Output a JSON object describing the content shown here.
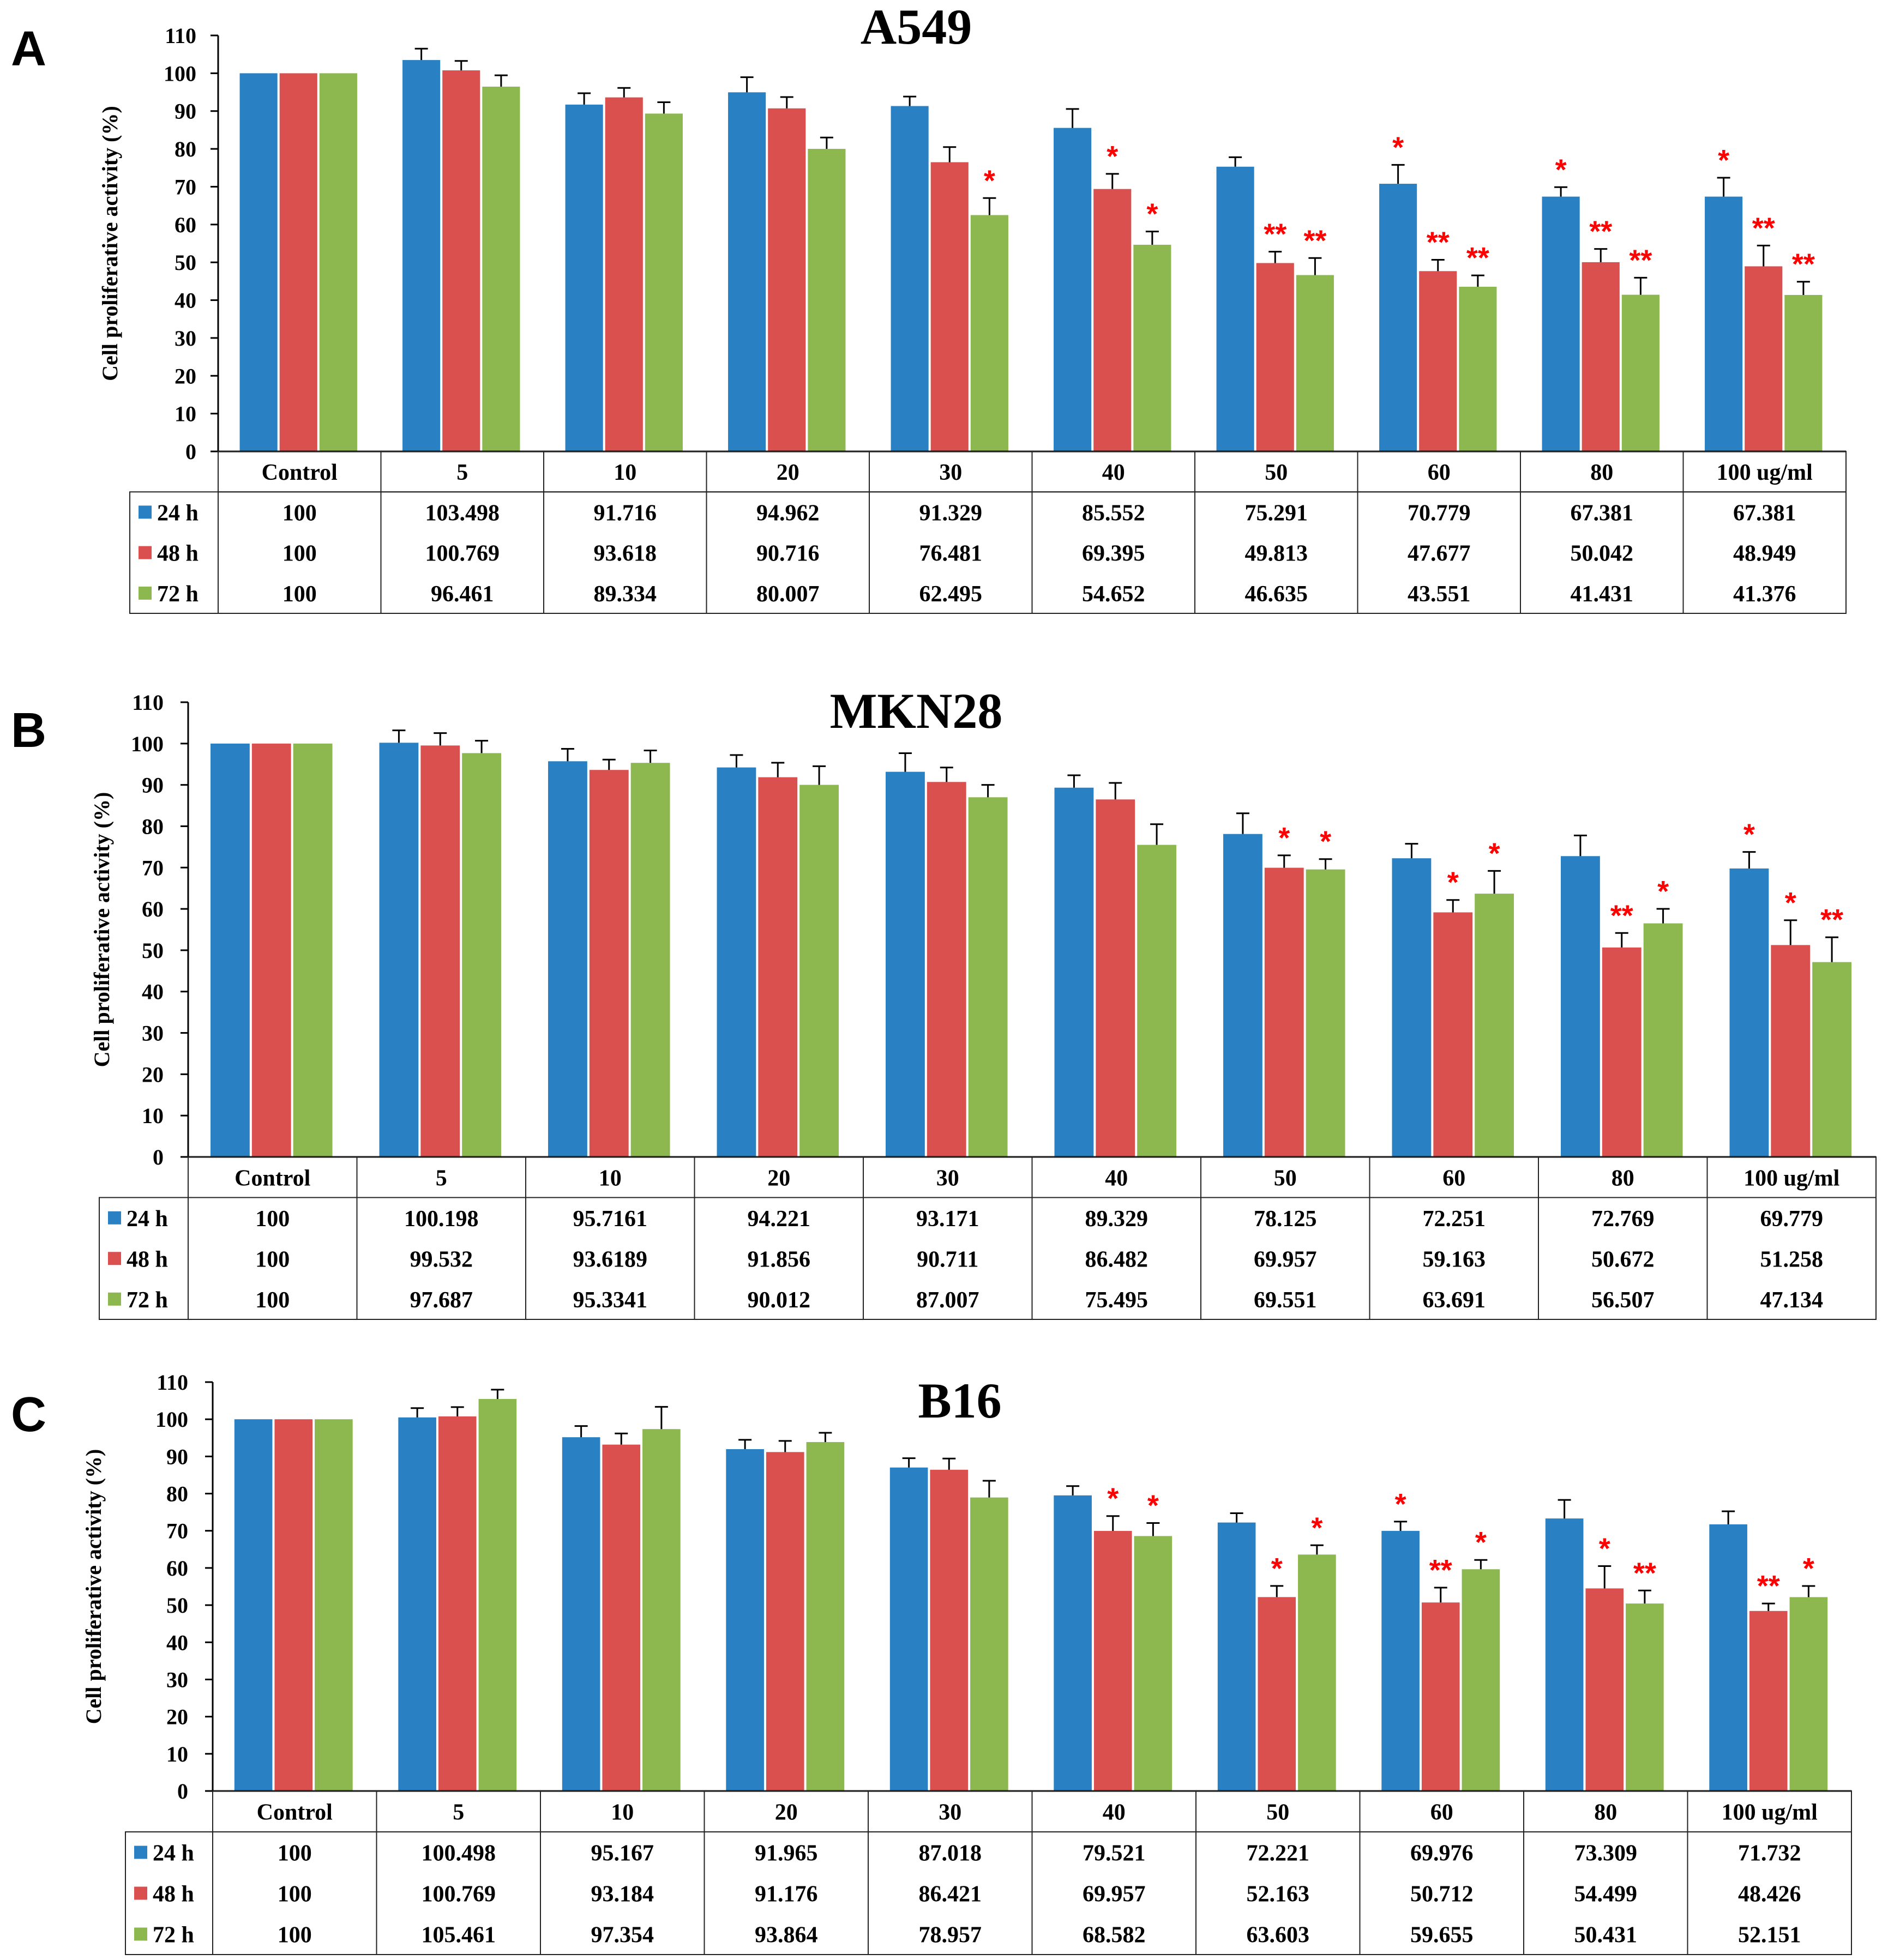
{
  "chart_data": [
    {
      "type": "bar",
      "panel": "A",
      "title": "A549",
      "ylabel": "Cell proliferative  activity (%)",
      "ylim": [
        0,
        110
      ],
      "yticks": [
        0,
        10,
        20,
        30,
        40,
        50,
        60,
        70,
        80,
        90,
        100,
        110
      ],
      "categories": [
        "Control",
        "5",
        "10",
        "20",
        "30",
        "40",
        "50",
        "60",
        "80",
        "100 ug/ml"
      ],
      "series": [
        {
          "name": "24 h",
          "color": "#2981C3",
          "values": [
            100,
            103.498,
            91.716,
            94.962,
            91.329,
            85.552,
            75.291,
            70.779,
            67.381,
            67.381
          ],
          "errors": [
            0,
            3,
            3,
            4,
            2.5,
            5,
            2.5,
            5,
            2.5,
            5
          ],
          "labels": [
            "100",
            "103.498",
            "91.716",
            "94.962",
            "91.329",
            "85.552",
            "75.291",
            "70.779",
            "67.381",
            "67.381"
          ],
          "sig": [
            "",
            "",
            "",
            "",
            "",
            "",
            "",
            "*",
            "*",
            "*"
          ]
        },
        {
          "name": "48 h",
          "color": "#D9504E",
          "values": [
            100,
            100.769,
            93.618,
            90.716,
            76.481,
            69.395,
            49.813,
            47.677,
            50.042,
            48.949
          ],
          "errors": [
            0,
            2.5,
            2.5,
            3,
            4,
            4,
            3,
            3,
            3.5,
            5.5
          ],
          "labels": [
            "100",
            "100.769",
            "93.618",
            "90.716",
            "76.481",
            "69.395",
            "49.813",
            "47.677",
            "50.042",
            "48.949"
          ],
          "sig": [
            "",
            "",
            "",
            "",
            "",
            "*",
            "**",
            "**",
            "**",
            "**"
          ]
        },
        {
          "name": "72 h",
          "color": "#8DB84F",
          "values": [
            100,
            96.461,
            89.334,
            80.007,
            62.495,
            54.652,
            46.635,
            43.551,
            41.431,
            41.376
          ],
          "errors": [
            0,
            3,
            3,
            3,
            4.5,
            3.5,
            4.5,
            3,
            4.5,
            3.5
          ],
          "labels": [
            "100",
            "96.461",
            "89.334",
            "80.007",
            "62.495",
            "54.652",
            "46.635",
            "43.551",
            "41.431",
            "41.376"
          ],
          "sig": [
            "",
            "",
            "",
            "",
            "*",
            "*",
            "**",
            "**",
            "**",
            "**"
          ]
        }
      ]
    },
    {
      "type": "bar",
      "panel": "B",
      "title": "MKN28",
      "ylabel": "Cell proliferative  activity (%)",
      "ylim": [
        0,
        110
      ],
      "yticks": [
        0,
        10,
        20,
        30,
        40,
        50,
        60,
        70,
        80,
        90,
        100,
        110
      ],
      "categories": [
        "Control",
        "5",
        "10",
        "20",
        "30",
        "40",
        "50",
        "60",
        "80",
        "100 ug/ml"
      ],
      "series": [
        {
          "name": "24 h",
          "color": "#2981C3",
          "values": [
            100,
            100.198,
            95.7161,
            94.221,
            93.171,
            89.329,
            78.125,
            72.251,
            72.769,
            69.779
          ],
          "errors": [
            0,
            3,
            3,
            3,
            4.5,
            3,
            5,
            3.5,
            5,
            4
          ],
          "labels": [
            "100",
            "100.198",
            "95.7161",
            "94.221",
            "93.171",
            "89.329",
            "78.125",
            "72.251",
            "72.769",
            "69.779"
          ],
          "sig": [
            "",
            "",
            "",
            "",
            "",
            "",
            "",
            "",
            "",
            "*"
          ]
        },
        {
          "name": "48 h",
          "color": "#D9504E",
          "values": [
            100,
            99.532,
            93.6189,
            91.856,
            90.711,
            86.482,
            69.957,
            59.163,
            50.672,
            51.258
          ],
          "errors": [
            0,
            3,
            2.5,
            3.5,
            3.5,
            4,
            3,
            3,
            3.5,
            6
          ],
          "labels": [
            "100",
            "99.532",
            "93.6189",
            "91.856",
            "90.711",
            "86.482",
            "69.957",
            "59.163",
            "50.672",
            "51.258"
          ],
          "sig": [
            "",
            "",
            "",
            "",
            "",
            "",
            "*",
            "*",
            "**",
            "*"
          ]
        },
        {
          "name": "72 h",
          "color": "#8DB84F",
          "values": [
            100,
            97.687,
            95.3341,
            90.012,
            87.007,
            75.495,
            69.551,
            63.691,
            56.507,
            47.134
          ],
          "errors": [
            0,
            3,
            3,
            4.5,
            3,
            5,
            2.5,
            5.5,
            3.5,
            6
          ],
          "labels": [
            "100",
            "97.687",
            "95.3341",
            "90.012",
            "87.007",
            "75.495",
            "69.551",
            "63.691",
            "56.507",
            "47.134"
          ],
          "sig": [
            "",
            "",
            "",
            "",
            "",
            "",
            "*",
            "*",
            "*",
            "**"
          ]
        }
      ]
    },
    {
      "type": "bar",
      "panel": "C",
      "title": "B16",
      "ylabel": "Cell proliferative  activity (%)",
      "ylim": [
        0,
        110
      ],
      "yticks": [
        0,
        10,
        20,
        30,
        40,
        50,
        60,
        70,
        80,
        90,
        100,
        110
      ],
      "categories": [
        "Control",
        "5",
        "10",
        "20",
        "30",
        "40",
        "50",
        "60",
        "80",
        "100 ug/ml"
      ],
      "series": [
        {
          "name": "24 h",
          "color": "#2981C3",
          "values": [
            100,
            100.498,
            95.167,
            91.965,
            87.018,
            79.521,
            72.221,
            69.976,
            73.309,
            71.732
          ],
          "errors": [
            0,
            2.5,
            3,
            2.5,
            2.5,
            2.5,
            2.5,
            2.5,
            5,
            3.5
          ],
          "labels": [
            "100",
            "100.498",
            "95.167",
            "91.965",
            "87.018",
            "79.521",
            "72.221",
            "69.976",
            "73.309",
            "71.732"
          ],
          "sig": [
            "",
            "",
            "",
            "",
            "",
            "",
            "",
            "*",
            "",
            ""
          ]
        },
        {
          "name": "48 h",
          "color": "#D9504E",
          "values": [
            100,
            100.769,
            93.184,
            91.176,
            86.421,
            69.957,
            52.163,
            50.712,
            54.499,
            48.426
          ],
          "errors": [
            0,
            2.5,
            3,
            3,
            3,
            4,
            3,
            4,
            6,
            2
          ],
          "labels": [
            "100",
            "100.769",
            "93.184",
            "91.176",
            "86.421",
            "69.957",
            "52.163",
            "50.712",
            "54.499",
            "48.426"
          ],
          "sig": [
            "",
            "",
            "",
            "",
            "",
            "*",
            "*",
            "**",
            "*",
            "**"
          ]
        },
        {
          "name": "72 h",
          "color": "#8DB84F",
          "values": [
            100,
            105.461,
            97.354,
            93.864,
            78.957,
            68.582,
            63.603,
            59.655,
            50.431,
            52.151
          ],
          "errors": [
            0,
            2.5,
            6,
            2.5,
            4.5,
            3.5,
            2.5,
            2.5,
            3.5,
            3
          ],
          "labels": [
            "100",
            "105.461",
            "97.354",
            "93.864",
            "78.957",
            "68.582",
            "63.603",
            "59.655",
            "50.431",
            "52.151"
          ],
          "sig": [
            "",
            "",
            "",
            "",
            "",
            "*",
            "*",
            "*",
            "**",
            "*"
          ]
        }
      ]
    }
  ],
  "sig_color": "#FF0000"
}
